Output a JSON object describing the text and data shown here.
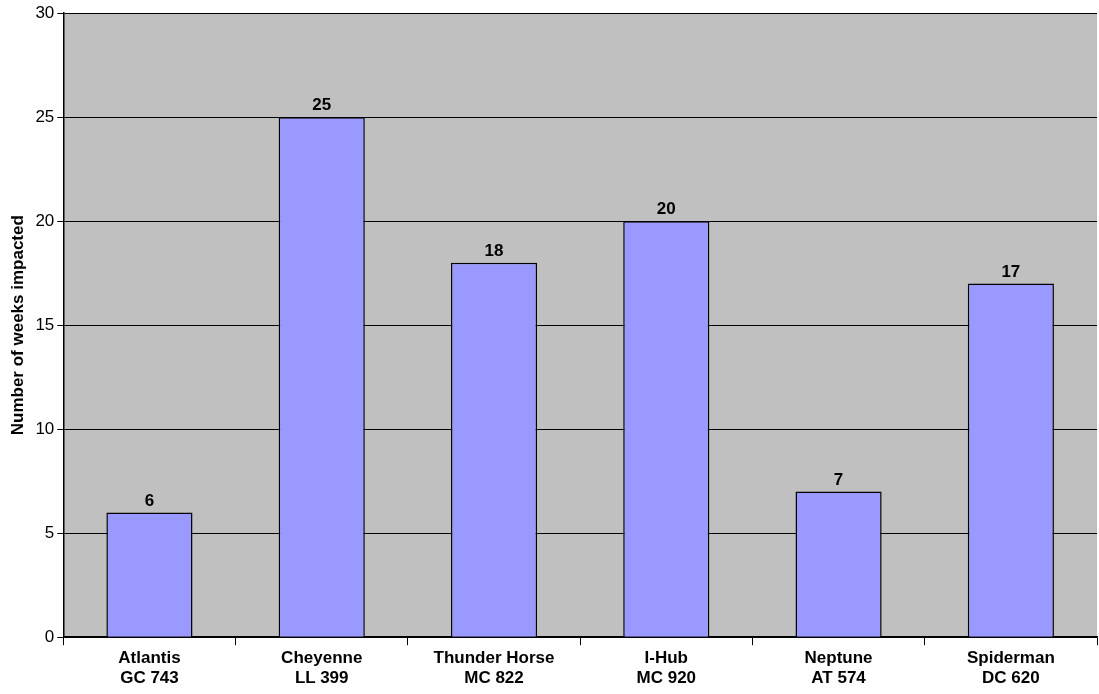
{
  "chart_data": {
    "type": "bar",
    "ylabel": "Number of weeks impacted",
    "categories": [
      "Atlantis\nGC 743",
      "Cheyenne\nLL 399",
      "Thunder Horse\nMC 822",
      "I-Hub\nMC 920",
      "Neptune\nAT 574",
      "Spiderman\nDC 620"
    ],
    "values": [
      6,
      25,
      18,
      20,
      7,
      17
    ],
    "color": "#9999ff",
    "ylim": [
      0,
      30
    ],
    "yticks": [
      0,
      5,
      10,
      15,
      20,
      25,
      30
    ],
    "grid": "y",
    "data_labels": true,
    "legend": false
  }
}
